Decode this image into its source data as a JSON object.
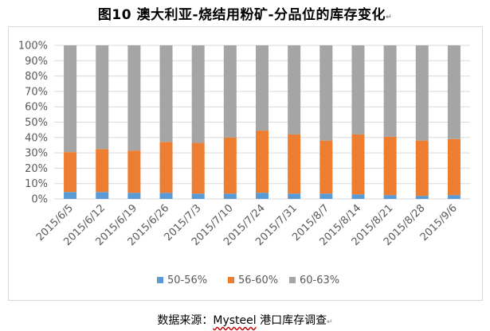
{
  "title": "图10  澳大利亚-烧结用粉矿-分品位的库存变化",
  "source": {
    "prefix": "数据来源：",
    "brand": "Mysteel",
    "suffix": "港口库存调查"
  },
  "colors": {
    "series_1": "#5b9bd5",
    "series_2": "#ed7d31",
    "series_3": "#a5a5a5",
    "grid": "#d9d9d9",
    "tick_text": "#595959"
  },
  "chart_data": {
    "type": "bar",
    "stacked": "100%",
    "categories": [
      "2015/6/5",
      "2015/6/12",
      "2015/6/19",
      "2015/6/26",
      "2015/7/3",
      "2015/7/10",
      "2015/7/24",
      "2015/7/31",
      "2015/8/7",
      "2015/8/14",
      "2015/8/21",
      "2015/8/28",
      "2015/9/6"
    ],
    "series": [
      {
        "name": "50-56%",
        "values": [
          4.5,
          4.5,
          4.0,
          4.0,
          3.5,
          3.5,
          4.0,
          3.5,
          3.5,
          3.0,
          2.5,
          2.0,
          2.5
        ]
      },
      {
        "name": "56-60%",
        "values": [
          26.0,
          28.0,
          27.5,
          33.0,
          33.0,
          36.5,
          40.5,
          38.5,
          34.5,
          39.0,
          38.0,
          36.0,
          36.5
        ]
      },
      {
        "name": "60-63%",
        "values": [
          69.5,
          67.5,
          68.5,
          63.0,
          63.5,
          60.0,
          55.5,
          58.0,
          62.0,
          58.0,
          59.5,
          62.0,
          61.0
        ]
      }
    ],
    "ylim": [
      0,
      100
    ],
    "yticks": [
      "0%",
      "10%",
      "20%",
      "30%",
      "40%",
      "50%",
      "60%",
      "70%",
      "80%",
      "90%",
      "100%"
    ],
    "grid": true,
    "legend_position": "bottom"
  }
}
